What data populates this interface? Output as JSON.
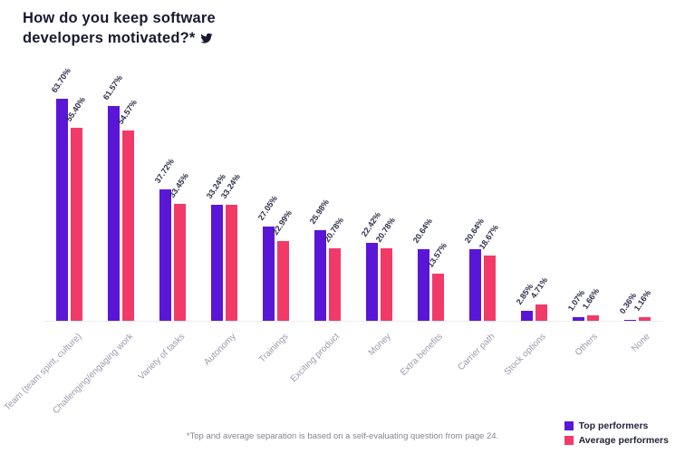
{
  "header": {
    "title": "How do you keep software developers motivated?*"
  },
  "chart_data": {
    "type": "bar",
    "title": "How do you keep software developers motivated?*",
    "categories": [
      "Team (team spirit, culture)",
      "Challenging/engaging work",
      "Variety of tasks",
      "Autonomy",
      "Trainings",
      "Exciting product",
      "Money",
      "Extra benefits",
      "Carrier path",
      "Stock options",
      "Others",
      "None"
    ],
    "series": [
      {
        "name": "Top performers",
        "color": "#5a16d6",
        "values": [
          63.7,
          61.57,
          37.72,
          33.24,
          27.05,
          25.98,
          22.42,
          20.64,
          20.64,
          2.85,
          1.07,
          0.36
        ]
      },
      {
        "name": "Average performers",
        "color": "#f23a68",
        "values": [
          55.4,
          54.57,
          33.45,
          33.24,
          22.99,
          20.78,
          20.78,
          13.57,
          18.67,
          4.71,
          1.66,
          1.16
        ]
      }
    ],
    "value_suffix": "%",
    "ylim": [
      0,
      65
    ],
    "grid": false,
    "legend_position": "bottom-right",
    "xlabel": "",
    "ylabel": ""
  },
  "footer": {
    "note": "*Top and average separation is based on a self-evaluating question from page 24."
  },
  "colors": {
    "title_text": "#191930",
    "value_label": "#2e2e4a",
    "axis_label": "#9a9aab",
    "footnote": "#85858f"
  },
  "icons": {
    "twitter": "twitter-icon"
  }
}
